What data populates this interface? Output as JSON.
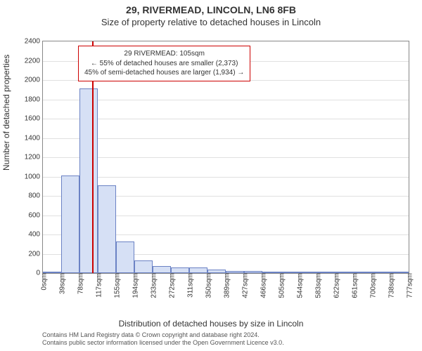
{
  "title_main": "29, RIVERMEAD, LINCOLN, LN6 8FB",
  "title_sub": "Size of property relative to detached houses in Lincoln",
  "ylabel": "Number of detached properties",
  "xlabel": "Distribution of detached houses by size in Lincoln",
  "footnote_1": "Contains HM Land Registry data © Crown copyright and database right 2024.",
  "footnote_2": "Contains public sector information licensed under the Open Government Licence v3.0.",
  "chart": {
    "type": "histogram",
    "background_color": "#ffffff",
    "grid_color": "#e0e0e0",
    "axis_color": "#888888",
    "bar_fill": "#d6e0f5",
    "bar_stroke": "#6b82c4",
    "marker_color": "#cc0000",
    "ylim": [
      0,
      2400
    ],
    "ytick_step": 200,
    "yticks": [
      0,
      200,
      400,
      600,
      800,
      1000,
      1200,
      1400,
      1600,
      1800,
      2000,
      2200,
      2400
    ],
    "xticks": [
      "0sqm",
      "39sqm",
      "78sqm",
      "117sqm",
      "155sqm",
      "194sqm",
      "233sqm",
      "272sqm",
      "311sqm",
      "350sqm",
      "389sqm",
      "427sqm",
      "466sqm",
      "505sqm",
      "544sqm",
      "583sqm",
      "622sqm",
      "661sqm",
      "700sqm",
      "738sqm",
      "777sqm"
    ],
    "values": [
      0,
      1010,
      1910,
      910,
      330,
      130,
      70,
      60,
      55,
      35,
      25,
      22,
      18,
      10,
      8,
      5,
      5,
      3,
      3,
      3
    ],
    "marker_bin_index": 2.7,
    "label_fontsize": 10,
    "axis_label_fontsize": 12,
    "title_fontsize_main": 14,
    "title_fontsize_sub": 13
  },
  "annotation": {
    "title": "29 RIVERMEAD: 105sqm",
    "line_left": "← 55% of detached houses are smaller (2,373)",
    "line_right": "45% of semi-detached houses are larger (1,934) →",
    "border_color": "#cc0000",
    "background_color": "#ffffff",
    "fontsize": 10
  }
}
